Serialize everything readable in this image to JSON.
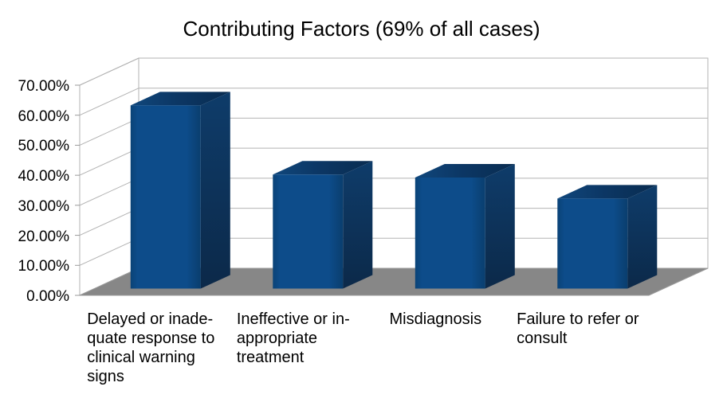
{
  "title": "Contributing Factors (69% of all cases)",
  "chart_data": {
    "type": "bar",
    "projection": "3d",
    "title": "Contributing Factors (69% of all cases)",
    "categories": [
      "Delayed or inadequate response to clinical warning signs",
      "Ineffective or inappropriate treatment",
      "Misdiagnosis",
      "Failure to refer or consult"
    ],
    "category_label_lines": [
      [
        "Delayed or inade-",
        "quate response to",
        "clinical warning",
        "signs"
      ],
      [
        "Ineffective or in-",
        "appropriate",
        "treatment"
      ],
      [
        "Misdiagnosis"
      ],
      [
        "Failure to refer or",
        "consult"
      ]
    ],
    "values": [
      61,
      38,
      37,
      30
    ],
    "unit": "%",
    "ylim": [
      0,
      70
    ],
    "ytick_step": 10,
    "ytick_labels": [
      "70.00%",
      "60.00%",
      "50.00%",
      "40.00%",
      "30.00%",
      "20.00%",
      "10.00%",
      "0.00%"
    ],
    "grid": true,
    "legend": false,
    "colors": {
      "bar_front": "#0d4c8a",
      "bar_front_edge": "#0a3e6e",
      "bar_top_light": "#10477c",
      "bar_top_dark": "#092c50",
      "bar_side_top": "#0e3c6a",
      "bar_side_bottom": "#0c2949",
      "floor": "#878787",
      "wall": "#ffffff",
      "gridline": "#b3b3b3",
      "axis_edge": "#9a9a9a",
      "text": "#000000",
      "background": "#ffffff"
    }
  }
}
